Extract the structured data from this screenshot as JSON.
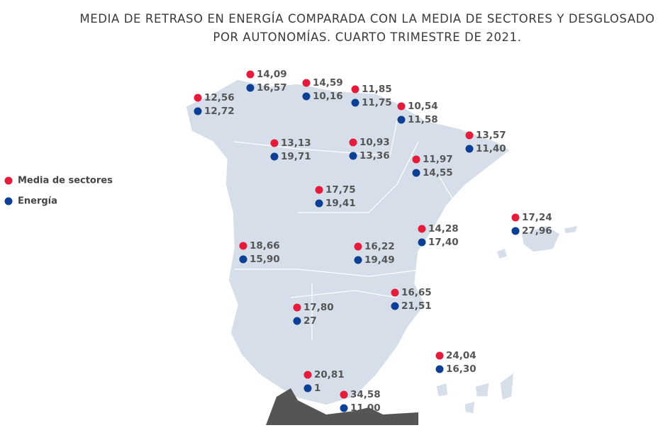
{
  "title": [
    "MEDIA DE RETRASO EN ENERGÍA COMPARADA CON LA MEDIA DE SECTORES Y DESGLOSADO",
    "POR AUTONOMÍAS. CUARTO TRIMESTRE DE 2021."
  ],
  "legend": [
    {
      "label": "Media de sectores",
      "color": "#e41b3a"
    },
    {
      "label": "Energía",
      "color": "#0d3f94"
    }
  ],
  "regions": [
    {
      "sectores": "12,56",
      "energia": "12,72"
    },
    {
      "sectores": "14,09",
      "energia": "16,57"
    },
    {
      "sectores": "14,59",
      "energia": "10,16"
    },
    {
      "sectores": "11,85",
      "energia": "11,75"
    },
    {
      "sectores": "10,54",
      "energia": "11,58"
    },
    {
      "sectores": "13,57",
      "energia": "11,40"
    },
    {
      "sectores": "13,13",
      "energia": "19,71"
    },
    {
      "sectores": "10,93",
      "energia": "13,36"
    },
    {
      "sectores": "11,97",
      "energia": "14,55"
    },
    {
      "sectores": "17,75",
      "energia": "19,41"
    },
    {
      "sectores": "17,24",
      "energia": "27,96"
    },
    {
      "sectores": "14,28",
      "energia": "17,40"
    },
    {
      "sectores": "18,66",
      "energia": "15,90"
    },
    {
      "sectores": "16,22",
      "energia": "19,49"
    },
    {
      "sectores": "16,65",
      "energia": "21,51"
    },
    {
      "sectores": "17,80",
      "energia": "27"
    },
    {
      "sectores": "24,04",
      "energia": "16,30"
    },
    {
      "sectores": "20,81",
      "energia": "1"
    },
    {
      "sectores": "34,58",
      "energia": "11,00"
    }
  ]
}
